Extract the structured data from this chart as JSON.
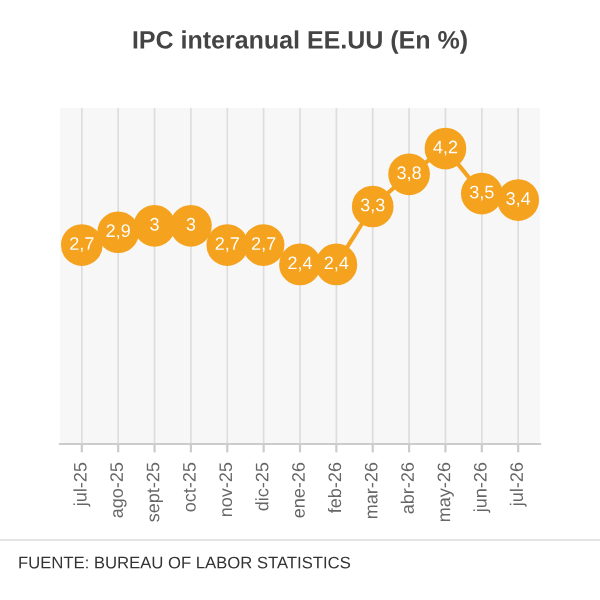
{
  "chart_data": {
    "type": "line",
    "title": "IPC interanual EE.UU (En %)",
    "categories": [
      "jul-25",
      "ago-25",
      "sept-25",
      "oct-25",
      "nov-25",
      "dic-25",
      "ene-26",
      "feb-26",
      "mar-26",
      "abr-26",
      "may-26",
      "jun-26",
      "jul-26"
    ],
    "series": [
      {
        "color": "#f5a21f",
        "values": [
          2.7,
          2.9,
          3,
          3,
          2.7,
          2.7,
          2.4,
          2.4,
          3.3,
          3.8,
          4.2,
          3.5,
          3.4
        ],
        "value_labels": [
          "2,7",
          "2,9",
          "3",
          "3",
          "2,7",
          "2,7",
          "2,4",
          "2,4",
          "3,3",
          "3,8",
          "4,2",
          "3,5",
          "3,4"
        ]
      }
    ],
    "marker": "circle",
    "grid": "x",
    "legend": false,
    "annotations": [
      "FUENTE: BUREAU OF LABOR STATISTICS"
    ]
  }
}
